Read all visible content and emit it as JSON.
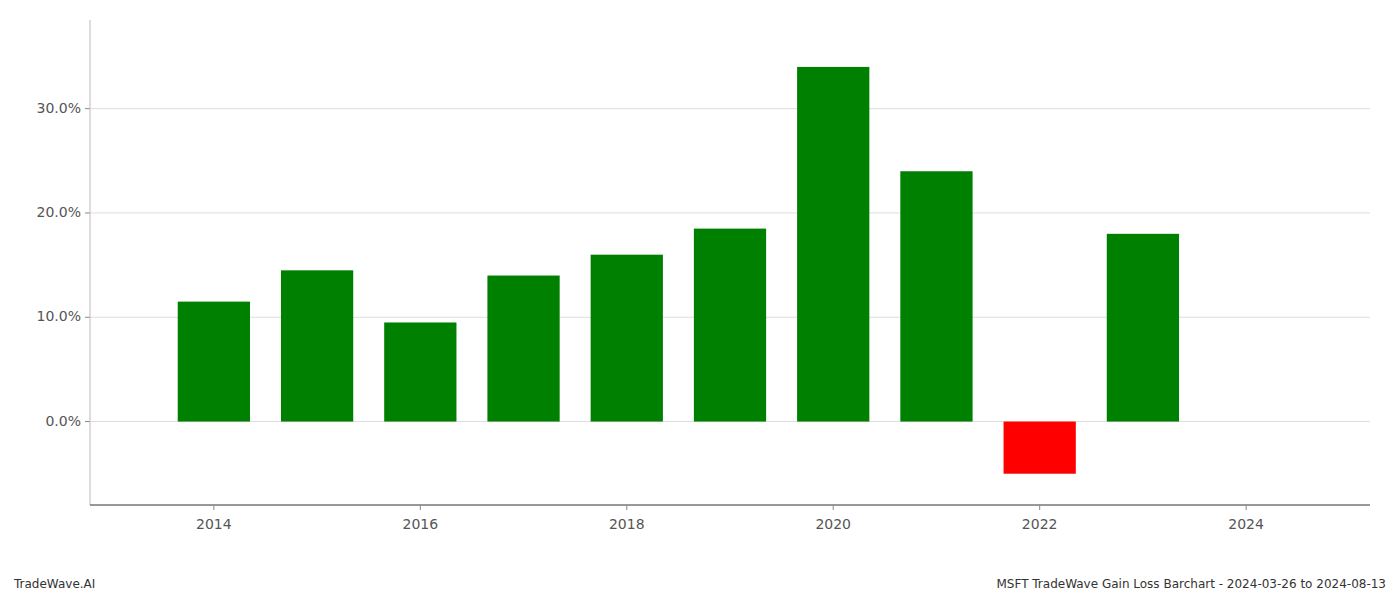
{
  "chart_data": {
    "type": "bar",
    "x": [
      2014,
      2015,
      2016,
      2017,
      2018,
      2019,
      2020,
      2021,
      2022,
      2023
    ],
    "values": [
      0.115,
      0.145,
      0.095,
      0.14,
      0.16,
      0.185,
      0.34,
      0.24,
      -0.05,
      0.18
    ],
    "colors": [
      "#008000",
      "#008000",
      "#008000",
      "#008000",
      "#008000",
      "#008000",
      "#008000",
      "#008000",
      "#ff0000",
      "#008000"
    ],
    "xlim": [
      2012.8,
      2025.2
    ],
    "xticks": [
      2014,
      2016,
      2018,
      2020,
      2022,
      2024
    ],
    "ylim": [
      -0.08,
      0.385
    ],
    "yticks": [
      {
        "value": 0.0,
        "label": "0.0%"
      },
      {
        "value": 0.1,
        "label": "10.0%"
      },
      {
        "value": 0.2,
        "label": "20.0%"
      },
      {
        "value": 0.3,
        "label": "30.0%"
      }
    ],
    "grid": true,
    "annotations": [
      "TradeWave.AI",
      "MSFT TradeWave Gain Loss Barchart - 2024-03-26 to 2024-08-13"
    ]
  }
}
